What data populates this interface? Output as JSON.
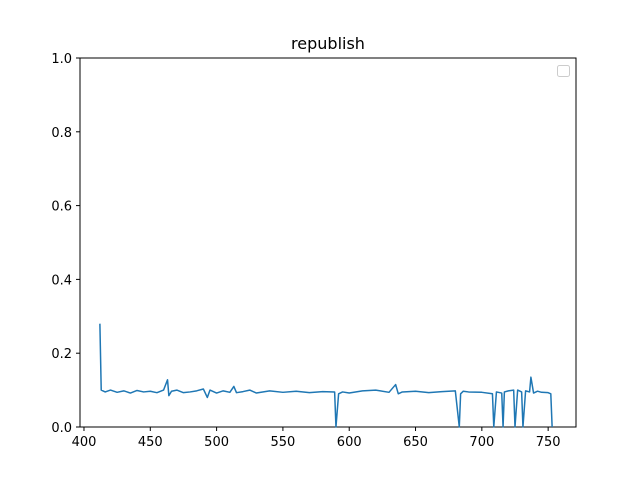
{
  "chart_data": {
    "type": "line",
    "title": "republish",
    "xlabel": "",
    "ylabel": "",
    "xlim": [
      397,
      771
    ],
    "ylim": [
      0,
      1
    ],
    "xticks": [
      400,
      450,
      500,
      550,
      600,
      650,
      700,
      750
    ],
    "yticks": [
      0.0,
      0.2,
      0.4,
      0.6,
      0.8,
      1.0
    ],
    "ytick_labels": [
      "0.0",
      "0.2",
      "0.4",
      "0.6",
      "0.8",
      "1.0"
    ],
    "grid": false,
    "legend": {
      "placement": "upper right",
      "entries": []
    },
    "series": [
      {
        "color": "#1f77b4",
        "x": [
          412,
          413,
          416,
          420,
          425,
          430,
          435,
          440,
          445,
          450,
          455,
          460,
          463,
          464,
          466,
          470,
          475,
          480,
          485,
          490,
          493,
          495,
          500,
          505,
          510,
          513,
          515,
          520,
          525,
          530,
          540,
          550,
          560,
          570,
          580,
          589,
          590,
          592,
          595,
          600,
          610,
          620,
          630,
          635,
          637,
          640,
          650,
          660,
          670,
          680,
          683,
          684,
          686,
          690,
          700,
          708,
          709,
          711,
          715,
          716,
          717,
          720,
          724,
          725,
          727,
          730,
          731,
          733,
          736,
          737,
          739,
          742,
          745,
          750,
          752,
          753
        ],
        "y": [
          0.28,
          0.1,
          0.095,
          0.1,
          0.094,
          0.098,
          0.092,
          0.099,
          0.095,
          0.097,
          0.093,
          0.1,
          0.128,
          0.085,
          0.097,
          0.1,
          0.093,
          0.095,
          0.098,
          0.103,
          0.08,
          0.1,
          0.092,
          0.098,
          0.094,
          0.11,
          0.093,
          0.096,
          0.1,
          0.092,
          0.098,
          0.094,
          0.097,
          0.093,
          0.096,
          0.095,
          0.0,
          0.09,
          0.095,
          0.092,
          0.098,
          0.1,
          0.094,
          0.115,
          0.09,
          0.095,
          0.097,
          0.093,
          0.096,
          0.098,
          0.0,
          0.09,
          0.097,
          0.095,
          0.094,
          0.09,
          0.0,
          0.095,
          0.092,
          0.0,
          0.095,
          0.098,
          0.1,
          0.0,
          0.1,
          0.095,
          0.0,
          0.098,
          0.095,
          0.135,
          0.092,
          0.097,
          0.094,
          0.093,
          0.09,
          0.0
        ]
      }
    ]
  }
}
